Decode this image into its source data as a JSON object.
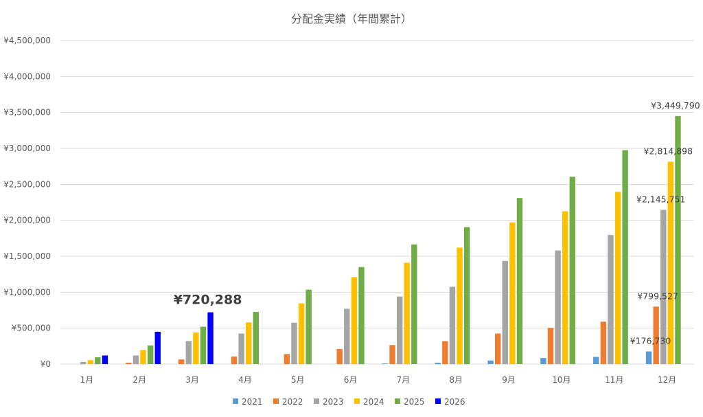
{
  "chart_data": {
    "type": "bar",
    "title": "分配金実績（年間累計）",
    "categories": [
      "1月",
      "2月",
      "3月",
      "4月",
      "5月",
      "6月",
      "7月",
      "8月",
      "9月",
      "10月",
      "11月",
      "12月"
    ],
    "ylim": [
      0,
      4500000
    ],
    "yticks": [
      0,
      500000,
      1000000,
      1500000,
      2000000,
      2500000,
      3000000,
      3500000,
      4000000,
      4500000
    ],
    "ytick_labels": [
      "¥0",
      "¥500,000",
      "¥1,000,000",
      "¥1,500,000",
      "¥2,000,000",
      "¥2,500,000",
      "¥3,000,000",
      "¥3,500,000",
      "¥4,000,000",
      "¥4,500,000"
    ],
    "grid": true,
    "legend_position": "bottom",
    "series": [
      {
        "name": "2021",
        "color": "#5b9bd5",
        "values": [
          0,
          0,
          0,
          0,
          0,
          0,
          8000,
          20000,
          50000,
          85000,
          100000,
          176730
        ]
      },
      {
        "name": "2022",
        "color": "#ed7d31",
        "values": [
          0,
          20000,
          65000,
          105000,
          140000,
          210000,
          265000,
          320000,
          425000,
          505000,
          590000,
          799527
        ]
      },
      {
        "name": "2023",
        "color": "#a5a5a5",
        "values": [
          30000,
          120000,
          320000,
          425000,
          575000,
          770000,
          940000,
          1075000,
          1435000,
          1580000,
          1795000,
          2145751
        ]
      },
      {
        "name": "2024",
        "color": "#ffc000",
        "values": [
          55000,
          195000,
          440000,
          580000,
          845000,
          1210000,
          1410000,
          1620000,
          1970000,
          2125000,
          2395000,
          2814898
        ]
      },
      {
        "name": "2025",
        "color": "#70ad47",
        "values": [
          95000,
          260000,
          520000,
          725000,
          1035000,
          1350000,
          1665000,
          1905000,
          2310000,
          2605000,
          2975000,
          3449790
        ]
      },
      {
        "name": "2026",
        "color": "#0000ff",
        "values": [
          120000,
          450000,
          720288,
          null,
          null,
          null,
          null,
          null,
          null,
          null,
          null,
          null
        ]
      }
    ],
    "annotations": [
      {
        "text": "¥720,288",
        "series": "2026",
        "category": "3月",
        "style": "big"
      },
      {
        "text": "¥176,730",
        "series": "2021",
        "category": "12月",
        "style": "normal"
      },
      {
        "text": "¥799,527",
        "series": "2022",
        "category": "12月",
        "style": "normal"
      },
      {
        "text": "¥2,145,751",
        "series": "2023",
        "category": "12月",
        "style": "normal"
      },
      {
        "text": "¥2,814,898",
        "series": "2024",
        "category": "12月",
        "style": "normal"
      },
      {
        "text": "¥3,449,790",
        "series": "2025",
        "category": "12月",
        "style": "normal"
      }
    ]
  }
}
